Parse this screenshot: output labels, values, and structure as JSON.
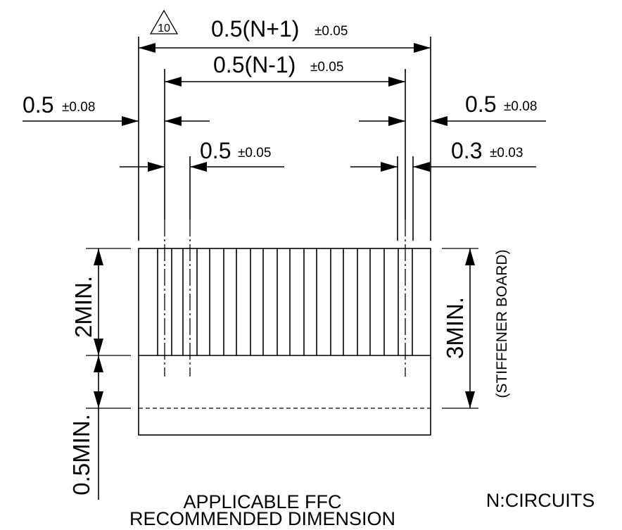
{
  "drawing": {
    "note_number": "10",
    "dim_total": {
      "main": "0.5(N+1)",
      "tol": "±0.05"
    },
    "dim_inner": {
      "main": "0.5(N-1)",
      "tol": "±0.05"
    },
    "dim_left_outer": {
      "main": "0.5",
      "tol": "±0.08"
    },
    "dim_right_outer": {
      "main": "0.5",
      "tol": "±0.08"
    },
    "dim_pitch": {
      "main": "0.5",
      "tol": "±0.05"
    },
    "dim_contact": {
      "main": "0.3",
      "tol": "±0.03"
    },
    "label_2min": "2MIN.",
    "label_3min": "3MIN.",
    "label_stiffener": "(STIFFENER BOARD)",
    "label_05min": "0.5MIN.",
    "caption_line1": "APPLICABLE FFC",
    "caption_line2": "RECOMMENDED DIMENSION",
    "circuits_note": "N:CIRCUITS"
  }
}
